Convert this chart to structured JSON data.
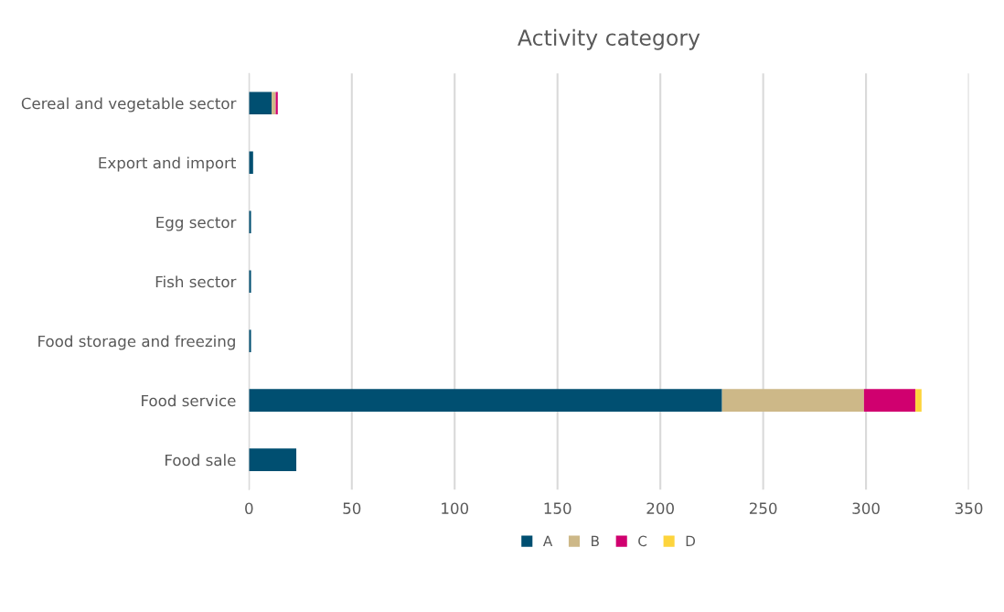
{
  "chart_data": {
    "type": "bar",
    "title": "Activity category",
    "orientation": "horizontal",
    "stacked": true,
    "categories": [
      "Cereal and vegetable sector",
      "Export and import",
      "Egg sector",
      "Fish sector",
      "Food storage and freezing",
      "Food service",
      "Food sale"
    ],
    "series": [
      {
        "name": "A",
        "color": "#004f71",
        "values": [
          11,
          2,
          1,
          1,
          1,
          230,
          23
        ]
      },
      {
        "name": "B",
        "color": "#cdb888",
        "values": [
          2,
          0,
          0,
          0,
          0,
          69,
          0
        ]
      },
      {
        "name": "C",
        "color": "#d0006f",
        "values": [
          1,
          0,
          0,
          0,
          0,
          25,
          0
        ]
      },
      {
        "name": "D",
        "color": "#fdd43c",
        "values": [
          0,
          0,
          0,
          0,
          0,
          3,
          0
        ]
      }
    ],
    "xlim": [
      0,
      350
    ],
    "xticks": [
      0,
      50,
      100,
      150,
      200,
      250,
      300,
      350
    ],
    "grid": "x",
    "legend": "bottom"
  }
}
